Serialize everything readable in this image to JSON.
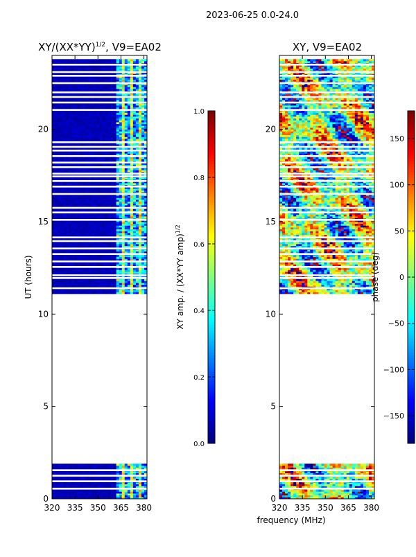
{
  "suptitle": "2023-06-25 0.0-24.0",
  "shared": {
    "xlabel": "frequency (MHz)",
    "ylabel": "UT (hours)"
  },
  "colors": {
    "jet": [
      "#00007f",
      "#0000ff",
      "#007fff",
      "#00ffff",
      "#7fff7f",
      "#ffff00",
      "#ff7f00",
      "#ff0000",
      "#7f0000"
    ]
  },
  "chart_data": [
    {
      "type": "heatmap",
      "title": "XY/(XX*YY)",
      "title_sup": "1/2",
      "title_suffix": ", V9=EA02",
      "xlim": [
        320,
        382
      ],
      "ylim": [
        0,
        24
      ],
      "xticks": [
        320,
        335,
        350,
        365,
        380
      ],
      "yticks": [
        0,
        5,
        10,
        15,
        20
      ],
      "data_row_ranges_hours": [
        [
          0.05,
          1.95
        ],
        [
          11.1,
          23.8
        ]
      ],
      "blank_row_hours": [
        0.55,
        0.95,
        1.25,
        1.55,
        11.4,
        11.95,
        12.1,
        12.55,
        12.85,
        13.25,
        13.55,
        13.95,
        14.15,
        15.1,
        15.5,
        15.75,
        16.5,
        16.9,
        17.2,
        17.45,
        17.6,
        17.95,
        18.2,
        18.55,
        18.85,
        19.05,
        19.3,
        21.05,
        21.45,
        21.75,
        22.0,
        22.5,
        22.9,
        23.1,
        23.5
      ],
      "active_band_mhz": [
        362,
        382
      ],
      "colorbar": {
        "label": "XY amp. / (XX*YY amp)",
        "label_sup": "1/2",
        "range": [
          0.0,
          1.0
        ],
        "ticks": [
          "0.0",
          "0.2",
          "0.4",
          "0.6",
          "0.8",
          "1.0"
        ]
      }
    },
    {
      "type": "heatmap",
      "title": "XY, V9=EA02",
      "xlim": [
        320,
        382
      ],
      "ylim": [
        0,
        24
      ],
      "xticks": [
        320,
        335,
        350,
        365,
        380
      ],
      "yticks": [
        0,
        5,
        10,
        15,
        20
      ],
      "data_row_ranges_hours": [
        [
          0.05,
          1.95
        ],
        [
          11.1,
          23.8
        ]
      ],
      "blank_row_hours": [
        0.55,
        0.95,
        1.25,
        1.55,
        11.4,
        11.95,
        12.1,
        12.55,
        12.85,
        13.25,
        13.55,
        13.95,
        14.15,
        15.1,
        15.5,
        15.75,
        16.5,
        16.9,
        17.2,
        17.45,
        17.6,
        17.95,
        18.2,
        18.55,
        18.85,
        19.05,
        19.3,
        21.05,
        21.45,
        21.75,
        22.0,
        22.5,
        22.9,
        23.1,
        23.5
      ],
      "colorbar": {
        "label": "phase (deg)",
        "range": [
          -180,
          180
        ],
        "ticks": [
          "150",
          "100",
          "50",
          "0",
          "−50",
          "−100",
          "−150"
        ],
        "tick_values": [
          150,
          100,
          50,
          0,
          -50,
          -100,
          -150
        ]
      }
    }
  ]
}
